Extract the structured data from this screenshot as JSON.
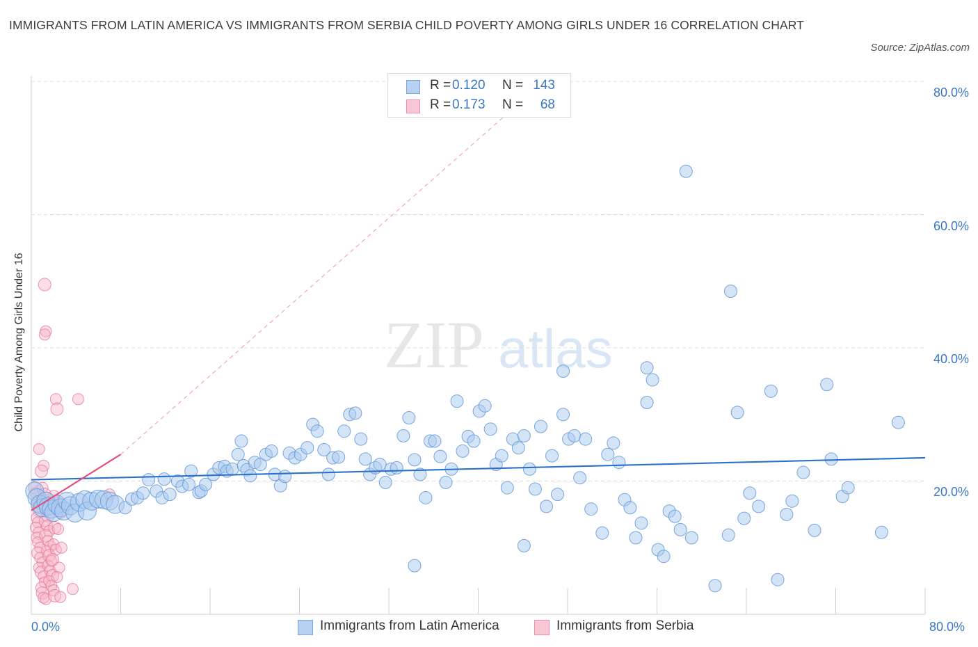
{
  "title": "IMMIGRANTS FROM LATIN AMERICA VS IMMIGRANTS FROM SERBIA CHILD POVERTY AMONG GIRLS UNDER 16 CORRELATION CHART",
  "source": "Source: ZipAtlas.com",
  "watermark": {
    "zip": "ZIP",
    "atlas": "atlas"
  },
  "colors": {
    "blue_fill": "#a9c9ef",
    "blue_stroke": "#6a9bd8",
    "blue_line": "#2d72c9",
    "pink_fill": "#f7b6c9",
    "pink_stroke": "#e97f9f",
    "pink_line": "#e0507d",
    "tick_text": "#3a78c4",
    "grid": "#dcdcdc"
  },
  "legend_top": [
    {
      "r_label": "R =",
      "r_value": "0.120",
      "n_label": "N =",
      "n_value": "143"
    },
    {
      "r_label": "R =",
      "r_value": "0.173",
      "n_label": "N =",
      "n_value": "68"
    }
  ],
  "chart_data": {
    "type": "scatter",
    "title": "IMMIGRANTS FROM LATIN AMERICA VS IMMIGRANTS FROM SERBIA CHILD POVERTY AMONG GIRLS UNDER 16 CORRELATION CHART",
    "xlabel": "",
    "ylabel": "Child Poverty Among Girls Under 16",
    "xlim": [
      0,
      80
    ],
    "ylim": [
      0,
      80
    ],
    "x_tick_labels": [
      "0.0%",
      "80.0%"
    ],
    "y_tick_values": [
      20,
      40,
      60,
      80
    ],
    "y_tick_labels": [
      "20.0%",
      "40.0%",
      "60.0%",
      "80.0%"
    ],
    "grid": true,
    "legend_position": "bottom",
    "series": [
      {
        "name": "Immigrants from Latin America",
        "r": 0.12,
        "n": 143,
        "trend": {
          "x": [
            0,
            80
          ],
          "y": [
            20.2,
            23.5
          ],
          "style": "solid"
        },
        "points": [
          [
            0.3,
            18.5
          ],
          [
            0.5,
            17.5
          ],
          [
            0.8,
            16.5
          ],
          [
            1.0,
            16.0
          ],
          [
            1.3,
            17.0
          ],
          [
            1.5,
            16.2
          ],
          [
            1.8,
            15.8
          ],
          [
            2.0,
            15.3
          ],
          [
            2.3,
            16.5
          ],
          [
            2.6,
            16.0
          ],
          [
            2.9,
            15.5
          ],
          [
            3.2,
            17.0
          ],
          [
            3.5,
            16.3
          ],
          [
            3.9,
            15.2
          ],
          [
            4.3,
            16.8
          ],
          [
            4.8,
            17.2
          ],
          [
            5.0,
            15.5
          ],
          [
            5.4,
            17.0
          ],
          [
            6.0,
            17.3
          ],
          [
            6.5,
            17.2
          ],
          [
            7.0,
            17.0
          ],
          [
            7.5,
            16.5
          ],
          [
            8.4,
            16.0
          ],
          [
            9.0,
            17.3
          ],
          [
            9.5,
            17.5
          ],
          [
            10.0,
            18.2
          ],
          [
            10.5,
            20.2
          ],
          [
            11.2,
            18.5
          ],
          [
            11.7,
            17.5
          ],
          [
            11.9,
            20.3
          ],
          [
            12.4,
            18.0
          ],
          [
            13.1,
            20.0
          ],
          [
            13.5,
            19.2
          ],
          [
            14.1,
            19.5
          ],
          [
            14.3,
            21.5
          ],
          [
            15.0,
            18.3
          ],
          [
            15.2,
            18.5
          ],
          [
            15.6,
            19.5
          ],
          [
            16.3,
            21.0
          ],
          [
            16.8,
            22.0
          ],
          [
            17.3,
            22.2
          ],
          [
            17.5,
            21.5
          ],
          [
            18.0,
            21.8
          ],
          [
            18.5,
            24.0
          ],
          [
            18.8,
            26.0
          ],
          [
            19.0,
            22.3
          ],
          [
            19.3,
            21.7
          ],
          [
            19.6,
            20.8
          ],
          [
            20.0,
            22.8
          ],
          [
            20.5,
            22.5
          ],
          [
            21.0,
            24.0
          ],
          [
            21.5,
            24.5
          ],
          [
            21.8,
            21.0
          ],
          [
            22.3,
            19.3
          ],
          [
            22.7,
            20.7
          ],
          [
            23.1,
            24.2
          ],
          [
            23.6,
            23.5
          ],
          [
            24.1,
            24.0
          ],
          [
            24.7,
            25.0
          ],
          [
            25.2,
            28.5
          ],
          [
            25.6,
            27.5
          ],
          [
            26.2,
            24.7
          ],
          [
            26.6,
            21.0
          ],
          [
            27.0,
            23.5
          ],
          [
            27.5,
            23.6
          ],
          [
            28.0,
            27.5
          ],
          [
            28.5,
            30.0
          ],
          [
            29.0,
            30.2
          ],
          [
            29.5,
            26.3
          ],
          [
            29.9,
            23.3
          ],
          [
            30.3,
            21.0
          ],
          [
            30.8,
            22.0
          ],
          [
            31.2,
            22.5
          ],
          [
            31.7,
            19.8
          ],
          [
            32.2,
            21.8
          ],
          [
            32.7,
            22.0
          ],
          [
            33.3,
            26.8
          ],
          [
            33.8,
            29.5
          ],
          [
            34.3,
            23.2
          ],
          [
            34.8,
            21.0
          ],
          [
            35.3,
            17.5
          ],
          [
            35.7,
            26.0
          ],
          [
            36.1,
            26.0
          ],
          [
            36.6,
            23.7
          ],
          [
            37.1,
            19.8
          ],
          [
            37.6,
            21.8
          ],
          [
            38.1,
            32.0
          ],
          [
            38.6,
            24.5
          ],
          [
            39.1,
            26.7
          ],
          [
            39.6,
            26.0
          ],
          [
            40.1,
            30.5
          ],
          [
            40.6,
            31.3
          ],
          [
            41.1,
            27.8
          ],
          [
            41.6,
            22.5
          ],
          [
            42.1,
            23.8
          ],
          [
            42.6,
            19.0
          ],
          [
            43.1,
            26.3
          ],
          [
            43.6,
            25.0
          ],
          [
            44.1,
            26.8
          ],
          [
            44.6,
            21.8
          ],
          [
            45.1,
            18.8
          ],
          [
            45.6,
            28.2
          ],
          [
            46.1,
            16.2
          ],
          [
            46.6,
            23.8
          ],
          [
            47.1,
            18.0
          ],
          [
            47.6,
            30.0
          ],
          [
            48.1,
            26.3
          ],
          [
            48.6,
            26.8
          ],
          [
            49.1,
            20.5
          ],
          [
            49.6,
            26.3
          ],
          [
            50.1,
            15.8
          ],
          [
            51.1,
            12.2
          ],
          [
            51.6,
            24.0
          ],
          [
            52.1,
            25.7
          ],
          [
            52.6,
            22.8
          ],
          [
            53.1,
            17.2
          ],
          [
            53.6,
            16.0
          ],
          [
            54.1,
            11.5
          ],
          [
            54.6,
            13.7
          ],
          [
            55.1,
            31.8
          ],
          [
            55.6,
            35.2
          ],
          [
            56.1,
            9.7
          ],
          [
            56.6,
            8.7
          ],
          [
            57.1,
            15.5
          ],
          [
            57.6,
            14.7
          ],
          [
            58.1,
            12.7
          ],
          [
            59.1,
            11.5
          ],
          [
            61.2,
            4.3
          ],
          [
            62.4,
            11.9
          ],
          [
            63.2,
            30.3
          ],
          [
            63.8,
            14.4
          ],
          [
            64.3,
            18.2
          ],
          [
            65.1,
            16.2
          ],
          [
            66.2,
            33.5
          ],
          [
            66.8,
            5.2
          ],
          [
            67.6,
            15.0
          ],
          [
            68.1,
            17.0
          ],
          [
            69.1,
            21.3
          ],
          [
            70.1,
            12.6
          ],
          [
            71.2,
            34.5
          ],
          [
            71.6,
            23.3
          ],
          [
            72.6,
            17.7
          ],
          [
            73.1,
            19.0
          ],
          [
            76.1,
            12.3
          ],
          [
            77.6,
            28.8
          ],
          [
            58.6,
            66.5
          ],
          [
            62.6,
            48.5
          ],
          [
            55.1,
            37.0
          ],
          [
            47.6,
            36.5
          ],
          [
            44.1,
            10.3
          ],
          [
            34.3,
            7.3
          ]
        ]
      },
      {
        "name": "Immigrants from Serbia",
        "r": 0.173,
        "n": 68,
        "trend": {
          "x": [
            0,
            8
          ],
          "y": [
            15.6,
            24.0
          ],
          "style": "solid",
          "extended": {
            "x": [
              8,
              42.5
            ],
            "y": [
              24.0,
              75.0
            ],
            "style": "dashed"
          }
        },
        "points": [
          [
            0.3,
            19.0
          ],
          [
            0.4,
            18.2
          ],
          [
            0.5,
            17.0
          ],
          [
            0.6,
            16.2
          ],
          [
            0.7,
            15.5
          ],
          [
            0.5,
            14.5
          ],
          [
            0.6,
            13.8
          ],
          [
            0.4,
            13.0
          ],
          [
            0.7,
            12.2
          ],
          [
            0.5,
            11.5
          ],
          [
            0.6,
            10.8
          ],
          [
            0.8,
            10.0
          ],
          [
            0.6,
            9.2
          ],
          [
            0.8,
            8.5
          ],
          [
            1.0,
            7.8
          ],
          [
            0.7,
            7.0
          ],
          [
            0.9,
            6.3
          ],
          [
            1.1,
            5.7
          ],
          [
            1.2,
            4.8
          ],
          [
            0.9,
            4.0
          ],
          [
            1.0,
            3.2
          ],
          [
            1.1,
            2.5
          ],
          [
            1.3,
            2.3
          ],
          [
            1.0,
            19.0
          ],
          [
            1.2,
            18.0
          ],
          [
            1.4,
            17.5
          ],
          [
            1.1,
            16.5
          ],
          [
            1.3,
            15.5
          ],
          [
            1.5,
            14.8
          ],
          [
            1.2,
            14.0
          ],
          [
            1.4,
            13.3
          ],
          [
            1.6,
            12.5
          ],
          [
            1.3,
            11.8
          ],
          [
            1.5,
            11.0
          ],
          [
            1.7,
            10.2
          ],
          [
            1.4,
            9.5
          ],
          [
            1.6,
            8.8
          ],
          [
            1.8,
            8.0
          ],
          [
            1.5,
            7.3
          ],
          [
            1.7,
            6.5
          ],
          [
            1.9,
            5.8
          ],
          [
            1.6,
            5.0
          ],
          [
            1.8,
            4.3
          ],
          [
            2.0,
            3.6
          ],
          [
            1.2,
            49.5
          ],
          [
            1.3,
            42.5
          ],
          [
            1.2,
            42.0
          ],
          [
            2.2,
            32.3
          ],
          [
            2.3,
            30.8
          ],
          [
            4.2,
            32.3
          ],
          [
            0.7,
            24.8
          ],
          [
            1.1,
            22.3
          ],
          [
            0.9,
            21.5
          ],
          [
            2.0,
            17.8
          ],
          [
            2.3,
            16.8
          ],
          [
            2.6,
            15.2
          ],
          [
            2.1,
            13.0
          ],
          [
            2.4,
            12.8
          ],
          [
            2.0,
            10.5
          ],
          [
            2.2,
            9.7
          ],
          [
            1.9,
            8.2
          ],
          [
            2.5,
            7.0
          ],
          [
            2.7,
            10.0
          ],
          [
            2.3,
            5.6
          ],
          [
            2.1,
            2.8
          ],
          [
            2.6,
            2.6
          ],
          [
            3.7,
            3.8
          ],
          [
            7.0,
            18.0
          ]
        ]
      }
    ]
  },
  "legend_bottom": [
    {
      "label": "Immigrants from Latin America"
    },
    {
      "label": "Immigrants from Serbia"
    }
  ]
}
